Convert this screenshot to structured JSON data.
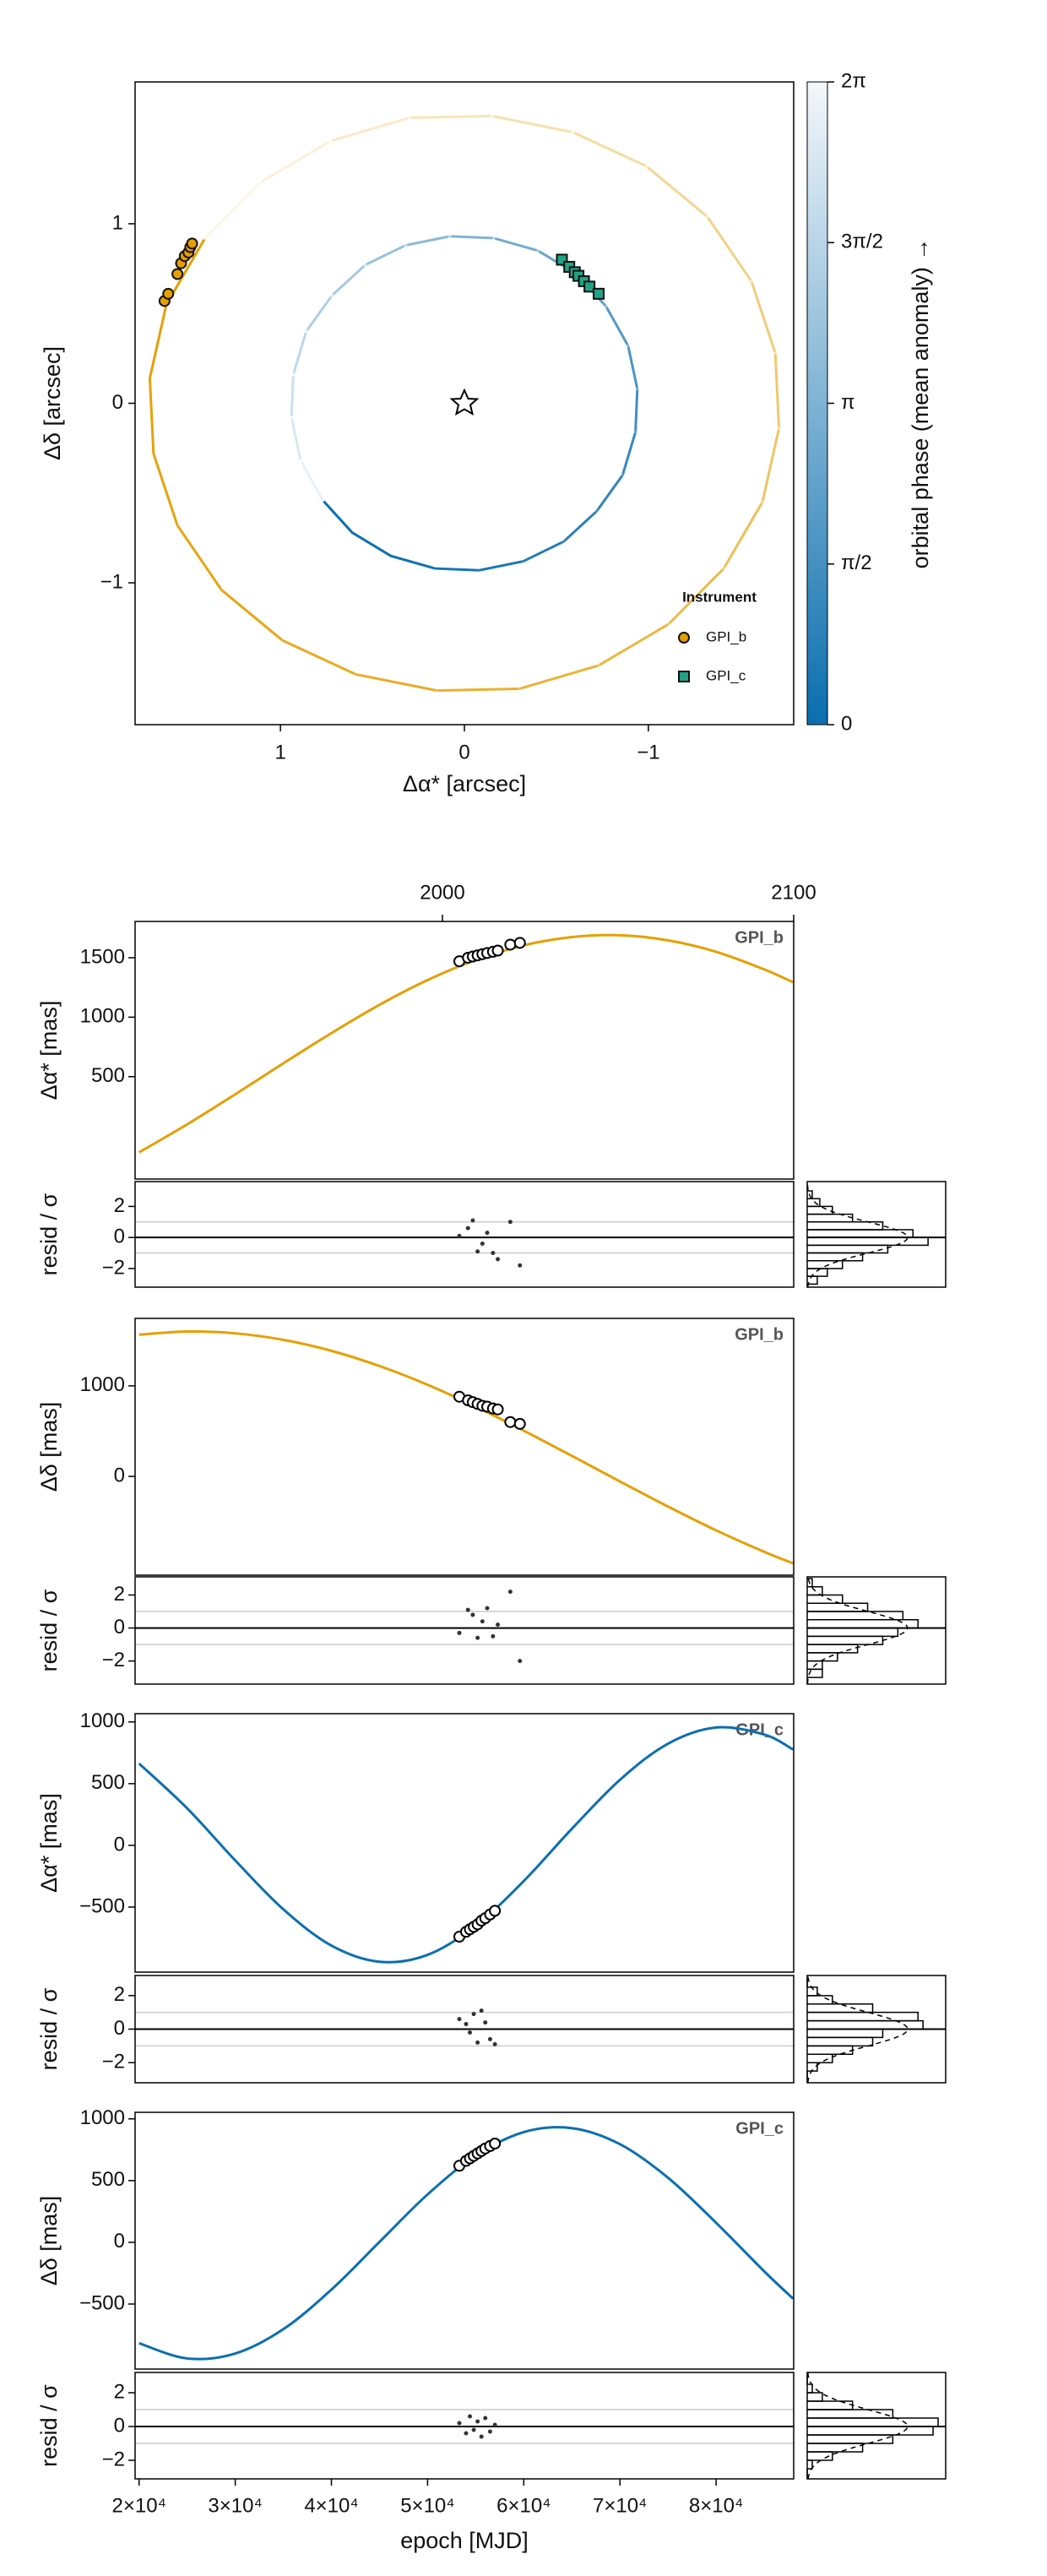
{
  "chart_data": [
    {
      "type": "orbit",
      "xlabel": "Δα* [arcsec]",
      "ylabel": "Δδ [arcsec]",
      "xlim": [
        1.79,
        -1.79
      ],
      "ylim": [
        -1.79,
        1.79
      ],
      "xticks": [
        1,
        0,
        {
          "value": -1,
          "label": "−1"
        }
      ],
      "yticks": [
        {
          "value": -1,
          "label": "−1"
        },
        0,
        1
      ],
      "orbits": [
        {
          "color": "#e69f00",
          "x": [
            1.41,
            1.62,
            1.71,
            1.69,
            1.56,
            1.32,
            0.99,
            0.59,
            0.15,
            -0.3,
            -0.73,
            -1.11,
            -1.41,
            -1.62,
            -1.71,
            -1.69,
            -1.56,
            -1.32,
            -0.99,
            -0.59,
            -0.15,
            0.3,
            0.73,
            1.11,
            1.41
          ],
          "y": [
            0.92,
            0.55,
            0.14,
            -0.28,
            -0.68,
            -1.04,
            -1.32,
            -1.51,
            -1.6,
            -1.59,
            -1.46,
            -1.23,
            -0.92,
            -0.55,
            -0.14,
            0.28,
            0.68,
            1.04,
            1.32,
            1.51,
            1.6,
            1.59,
            1.46,
            1.23,
            0.92
          ]
        },
        {
          "color": "#0b6fb0",
          "x": [
            0.77,
            0.61,
            0.4,
            0.16,
            -0.08,
            -0.32,
            -0.54,
            -0.72,
            -0.86,
            -0.93,
            -0.94,
            -0.89,
            -0.77,
            -0.61,
            -0.4,
            -0.16,
            0.08,
            0.32,
            0.54,
            0.72,
            0.86,
            0.93,
            0.94,
            0.89,
            0.77
          ],
          "y": [
            -0.54,
            -0.72,
            -0.85,
            -0.92,
            -0.93,
            -0.88,
            -0.77,
            -0.6,
            -0.4,
            -0.16,
            0.08,
            0.32,
            0.54,
            0.72,
            0.85,
            0.92,
            0.93,
            0.88,
            0.77,
            0.6,
            0.4,
            0.16,
            -0.08,
            -0.32,
            -0.54
          ]
        }
      ],
      "colorbar": {
        "label": "orbital phase (mean anomaly) →",
        "colors": [
          "#0a6eae",
          "#f4f7fa"
        ],
        "lim": [
          0,
          6.2832
        ],
        "ticks": [
          0,
          {
            "value": 1.5708,
            "label": "π/2"
          },
          {
            "value": 3.1416,
            "label": "π"
          },
          {
            "value": 4.7124,
            "label": "3π/2"
          },
          {
            "value": 6.2832,
            "label": "2π"
          }
        ]
      },
      "legend_title": "Instrument",
      "legend_position": "lower right",
      "series": [
        {
          "name": "GPI_b",
          "color": "#e69f00",
          "marker": "circle",
          "x": [
            1.63,
            1.61,
            1.56,
            1.54,
            1.52,
            1.5,
            1.49,
            1.48
          ],
          "y": [
            0.57,
            0.61,
            0.72,
            0.78,
            0.82,
            0.84,
            0.87,
            0.89
          ]
        },
        {
          "name": "GPI_c",
          "color": "#20a386",
          "marker": "square",
          "x": [
            -0.53,
            -0.57,
            -0.6,
            -0.62,
            -0.65,
            -0.68,
            -0.73
          ],
          "y": [
            0.8,
            0.76,
            0.73,
            0.71,
            0.68,
            0.65,
            0.61
          ]
        }
      ]
    },
    {
      "type": "timeseries",
      "xlabel": "epoch [MJD]",
      "xlim": [
        19586,
        88069
      ],
      "xticks": [
        {
          "value": 20000,
          "label": "2×10⁴"
        },
        {
          "value": 30000,
          "label": "3×10⁴"
        },
        {
          "value": 40000,
          "label": "4×10⁴"
        },
        {
          "value": 50000,
          "label": "5×10⁴"
        },
        {
          "value": 60000,
          "label": "6×10⁴"
        },
        {
          "value": 70000,
          "label": "7×10⁴"
        },
        {
          "value": 80000,
          "label": "8×10⁴"
        }
      ],
      "x2ticks": [
        {
          "value": 51544,
          "label": "2000"
        },
        {
          "value": 88069,
          "label": "2100"
        }
      ],
      "model_x": [
        20000,
        25000,
        30000,
        35000,
        40000,
        45000,
        50000,
        55000,
        60000,
        65000,
        70000,
        75000,
        80000,
        85000,
        88000
      ],
      "hist_xlim": [
        0,
        0.55
      ],
      "hist_bins": [
        -3,
        -2.5,
        -2,
        -1.5,
        -1,
        -0.5,
        0,
        0.5,
        1,
        1.5,
        2,
        2.5,
        3
      ],
      "panels": [
        {
          "ylabel": "Δα* [mas]",
          "label": "GPI_b",
          "color": "#e69f00",
          "ylim": [
            -361,
            1805
          ],
          "yticks": [
            500,
            1000,
            1500
          ],
          "model": [
            -136,
            99,
            352,
            612,
            866,
            1104,
            1312,
            1481,
            1604,
            1674,
            1689,
            1646,
            1550,
            1402,
            1294
          ],
          "points": {
            "x": [
              53300,
              54200,
              54700,
              55200,
              55700,
              56200,
              56800,
              57300,
              58600,
              59600
            ],
            "y": [
              1470,
              1500,
              1510,
              1520,
              1530,
              1540,
              1550,
              1560,
              1610,
              1625
            ]
          },
          "resid": {
            "ylabel": "resid / σ",
            "ylim": [
              -3.2,
              3.6
            ],
            "yticks": [
              {
                "value": -2,
                "label": "−2"
              },
              0,
              2
            ],
            "ref_lines": [
              -1,
              0,
              1
            ],
            "values": [
              0.1,
              0.6,
              1.1,
              -0.9,
              -0.4,
              0.3,
              -1.0,
              -1.4,
              1.0,
              -1.8
            ],
            "hist": [
              0.04,
              0.08,
              0.14,
              0.22,
              0.32,
              0.48,
              0.42,
              0.3,
              0.18,
              0.1,
              0.05,
              0.02
            ]
          }
        },
        {
          "ylabel": "Δδ [mas]",
          "label": "GPI_b",
          "color": "#e69f00",
          "ylim": [
            -1091,
            1745
          ],
          "yticks": [
            0,
            1000
          ],
          "model": [
            1565,
            1600,
            1580,
            1508,
            1387,
            1219,
            1012,
            770,
            505,
            227,
            -56,
            -333,
            -596,
            -833,
            -960
          ],
          "points": {
            "x": [
              53300,
              54200,
              54700,
              55200,
              55700,
              56200,
              56800,
              57300,
              58600,
              59600
            ],
            "y": [
              880,
              840,
              820,
              800,
              780,
              770,
              750,
              740,
              600,
              580
            ]
          },
          "resid": {
            "ylabel": "resid / σ",
            "ylim": [
              -3.4,
              3.1
            ],
            "yticks": [
              {
                "value": -2,
                "label": "−2"
              },
              0,
              2
            ],
            "ref_lines": [
              -1,
              0,
              1
            ],
            "values": [
              -0.3,
              1.1,
              0.8,
              -0.6,
              0.4,
              1.2,
              -0.5,
              0.2,
              2.2,
              -2.0
            ],
            "hist": [
              0.06,
              0.06,
              0.12,
              0.2,
              0.3,
              0.36,
              0.44,
              0.38,
              0.24,
              0.14,
              0.06,
              0.02
            ]
          }
        },
        {
          "ylabel": "Δα* [mas]",
          "label": "GPI_c",
          "color": "#0b6fb0",
          "ylim": [
            -1027,
            1067
          ],
          "yticks": [
            {
              "value": -500,
              "label": "−500"
            },
            0,
            500,
            1000
          ],
          "model": [
            663,
            300,
            -122,
            -518,
            -812,
            -943,
            -887,
            -652,
            -289,
            134,
            531,
            824,
            955,
            898,
            777
          ],
          "points": {
            "x": [
              53300,
              54000,
              54400,
              54800,
              55200,
              55600,
              56000,
              56500,
              57000
            ],
            "y": [
              -740,
              -700,
              -680,
              -660,
              -640,
              -610,
              -590,
              -560,
              -530
            ]
          },
          "resid": {
            "ylabel": "resid / σ",
            "ylim": [
              -3.2,
              3.2
            ],
            "yticks": [
              {
                "value": -2,
                "label": "−2"
              },
              0,
              2
            ],
            "ref_lines": [
              -1,
              0,
              1
            ],
            "values": [
              0.6,
              0.3,
              -0.2,
              0.9,
              -0.8,
              1.1,
              0.4,
              -0.6,
              -0.9
            ],
            "hist": [
              0.0,
              0.04,
              0.1,
              0.18,
              0.26,
              0.3,
              0.46,
              0.44,
              0.26,
              0.1,
              0.04,
              0.0
            ]
          }
        },
        {
          "ylabel": "Δδ [mas]",
          "label": "GPI_c",
          "color": "#0b6fb0",
          "ylim": [
            -1027,
            1053
          ],
          "yticks": [
            {
              "value": -500,
              "label": "−500"
            },
            0,
            500,
            1000
          ],
          "model": [
            -818,
            -941,
            -901,
            -704,
            -383,
            3,
            388,
            702,
            893,
            925,
            795,
            523,
            158,
            -235,
            -456
          ],
          "points": {
            "x": [
              53300,
              54000,
              54400,
              54800,
              55200,
              55600,
              56000,
              56500,
              57000
            ],
            "y": [
              620,
              660,
              680,
              700,
              720,
              740,
              760,
              780,
              800
            ]
          },
          "resid": {
            "ylabel": "resid / σ",
            "ylim": [
              -3.1,
              3.2
            ],
            "yticks": [
              {
                "value": -2,
                "label": "−2"
              },
              0,
              2
            ],
            "ref_lines": [
              -1,
              0,
              1
            ],
            "values": [
              0.2,
              -0.4,
              0.6,
              -0.2,
              0.3,
              -0.6,
              0.5,
              -0.3,
              0.1
            ],
            "hist": [
              0.0,
              0.02,
              0.1,
              0.22,
              0.34,
              0.5,
              0.52,
              0.34,
              0.18,
              0.06,
              0.02,
              0.0
            ]
          }
        }
      ]
    }
  ]
}
